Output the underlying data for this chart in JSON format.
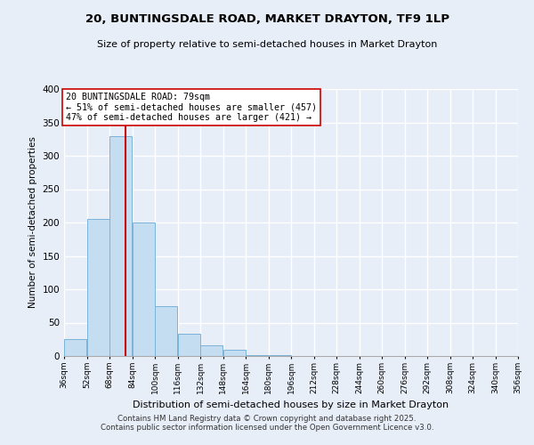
{
  "title": "20, BUNTINGSDALE ROAD, MARKET DRAYTON, TF9 1LP",
  "subtitle": "Size of property relative to semi-detached houses in Market Drayton",
  "xlabel": "Distribution of semi-detached houses by size in Market Drayton",
  "ylabel": "Number of semi-detached properties",
  "bin_labels": [
    "36sqm",
    "52sqm",
    "68sqm",
    "84sqm",
    "100sqm",
    "116sqm",
    "132sqm",
    "148sqm",
    "164sqm",
    "180sqm",
    "196sqm",
    "212sqm",
    "228sqm",
    "244sqm",
    "260sqm",
    "276sqm",
    "292sqm",
    "308sqm",
    "324sqm",
    "340sqm",
    "356sqm"
  ],
  "bar_values": [
    25,
    205,
    330,
    200,
    75,
    33,
    16,
    9,
    2,
    1,
    0,
    0,
    0,
    0,
    0,
    0,
    0,
    0,
    0,
    0
  ],
  "bin_edges": [
    36,
    52,
    68,
    84,
    100,
    116,
    132,
    148,
    164,
    180,
    196,
    212,
    228,
    244,
    260,
    276,
    292,
    308,
    324,
    340,
    356
  ],
  "bar_color": "#c5ddf0",
  "bar_edge_color": "#7ab3d9",
  "property_size": 79,
  "vline_color": "#cc0000",
  "annotation_title": "20 BUNTINGSDALE ROAD: 79sqm",
  "annotation_line1": "← 51% of semi-detached houses are smaller (457)",
  "annotation_line2": "47% of semi-detached houses are larger (421) →",
  "annotation_box_edge": "#cc0000",
  "annotation_box_face": "#ffffff",
  "ylim": [
    0,
    400
  ],
  "yticks": [
    0,
    50,
    100,
    150,
    200,
    250,
    300,
    350,
    400
  ],
  "background_color": "#e8eef8",
  "grid_color": "#ffffff",
  "footer_line1": "Contains HM Land Registry data © Crown copyright and database right 2025.",
  "footer_line2": "Contains public sector information licensed under the Open Government Licence v3.0."
}
